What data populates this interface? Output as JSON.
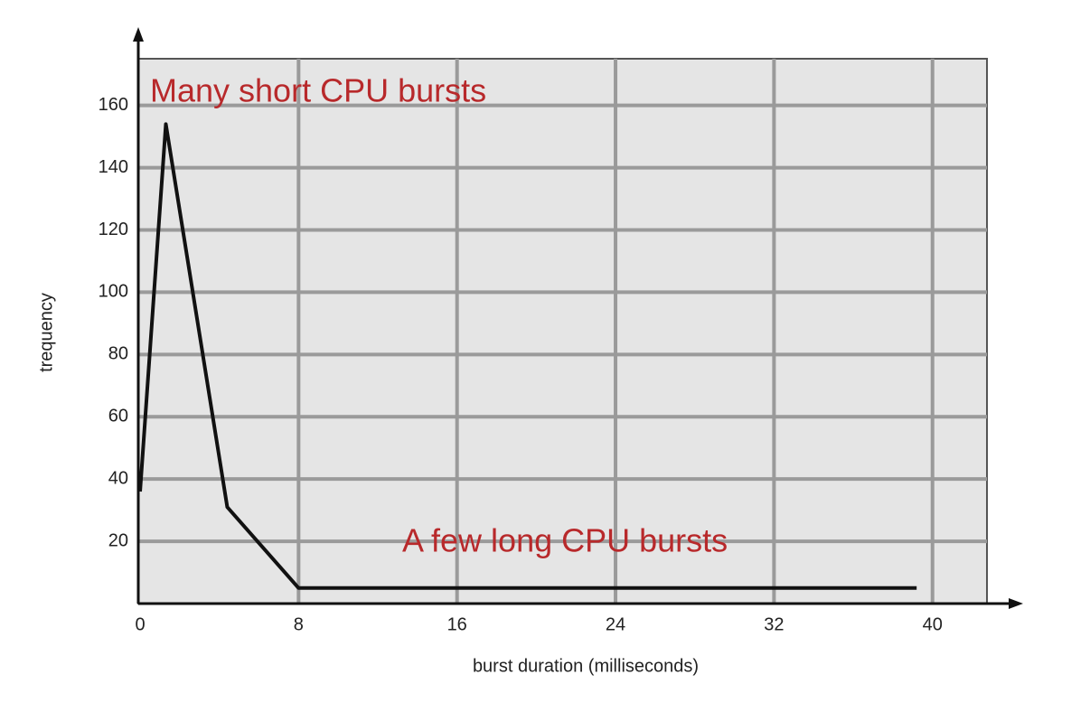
{
  "chart_data": {
    "type": "line",
    "xlabel": "burst duration (milliseconds)",
    "ylabel": "trequency",
    "annotations": [
      "Many short CPU bursts",
      "A few long CPU bursts"
    ],
    "x": [
      0,
      1.3,
      4.4,
      8,
      39.2
    ],
    "series": [
      {
        "color": "#111111",
        "values": [
          36,
          154,
          31,
          5,
          5
        ]
      }
    ],
    "xlim": [
      0,
      42.75
    ],
    "ylim": [
      0,
      175
    ],
    "xticks": [
      0,
      8,
      16,
      24,
      32,
      40
    ],
    "yticks": [
      20,
      40,
      60,
      80,
      100,
      120,
      140,
      160
    ],
    "grid": true
  }
}
